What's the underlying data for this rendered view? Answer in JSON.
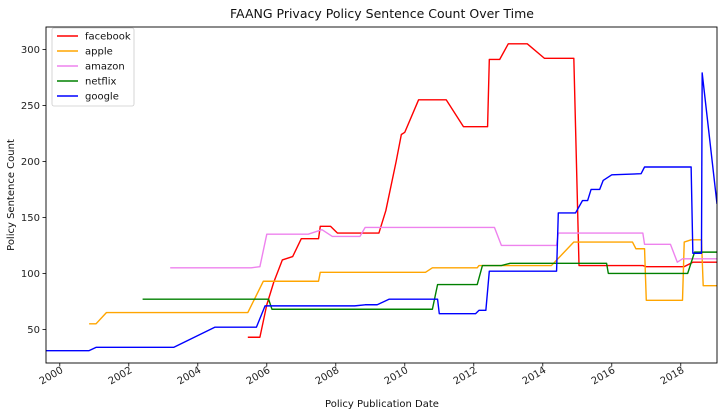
{
  "chart_data": {
    "type": "line",
    "title": "FAANG Privacy Policy Sentence Count Over Time",
    "xlabel": "Policy Publication Date",
    "ylabel": "Policy Sentence Count",
    "xlim": [
      1999.6,
      2019.05
    ],
    "ylim": [
      20,
      320
    ],
    "xticks": [
      {
        "value": 2000,
        "label": "2000"
      },
      {
        "value": 2002,
        "label": "2002"
      },
      {
        "value": 2004,
        "label": "2004"
      },
      {
        "value": 2006,
        "label": "2006"
      },
      {
        "value": 2008,
        "label": "2008"
      },
      {
        "value": 2010,
        "label": "2010"
      },
      {
        "value": 2012,
        "label": "2012"
      },
      {
        "value": 2014,
        "label": "2014"
      },
      {
        "value": 2016,
        "label": "2016"
      },
      {
        "value": 2018,
        "label": "2018"
      }
    ],
    "yticks": [
      {
        "value": 50,
        "label": "50"
      },
      {
        "value": 100,
        "label": "100"
      },
      {
        "value": 150,
        "label": "150"
      },
      {
        "value": 200,
        "label": "200"
      },
      {
        "value": 250,
        "label": "250"
      },
      {
        "value": 300,
        "label": "300"
      }
    ],
    "grid": false,
    "legend_position": "top-left",
    "series": [
      {
        "name": "facebook",
        "color": "#ff0000",
        "points": [
          [
            2005.45,
            43
          ],
          [
            2005.8,
            43
          ],
          [
            2006.0,
            72
          ],
          [
            2006.2,
            92
          ],
          [
            2006.45,
            112
          ],
          [
            2006.75,
            115
          ],
          [
            2007.0,
            131
          ],
          [
            2007.5,
            131
          ],
          [
            2007.55,
            142
          ],
          [
            2007.85,
            142
          ],
          [
            2008.05,
            136
          ],
          [
            2009.0,
            136
          ],
          [
            2009.25,
            136
          ],
          [
            2009.45,
            156
          ],
          [
            2009.75,
            200
          ],
          [
            2009.9,
            224
          ],
          [
            2010.0,
            226
          ],
          [
            2010.4,
            255
          ],
          [
            2011.2,
            255
          ],
          [
            2011.7,
            231
          ],
          [
            2012.4,
            231
          ],
          [
            2012.45,
            291
          ],
          [
            2012.75,
            291
          ],
          [
            2013.0,
            305
          ],
          [
            2013.55,
            305
          ],
          [
            2014.05,
            292
          ],
          [
            2014.9,
            292
          ],
          [
            2015.05,
            107
          ],
          [
            2015.2,
            107
          ],
          [
            2016.9,
            107
          ],
          [
            2017.0,
            106
          ],
          [
            2018.1,
            106
          ],
          [
            2018.35,
            110
          ],
          [
            2019.05,
            110
          ]
        ]
      },
      {
        "name": "apple",
        "color": "#ffa500",
        "points": [
          [
            2000.85,
            55
          ],
          [
            2001.05,
            55
          ],
          [
            2001.35,
            65
          ],
          [
            2005.45,
            65
          ],
          [
            2005.9,
            93
          ],
          [
            2007.5,
            93
          ],
          [
            2007.55,
            101
          ],
          [
            2010.6,
            101
          ],
          [
            2010.8,
            105
          ],
          [
            2012.1,
            105
          ],
          [
            2012.15,
            107
          ],
          [
            2014.25,
            107
          ],
          [
            2014.9,
            128
          ],
          [
            2016.6,
            128
          ],
          [
            2016.7,
            122
          ],
          [
            2016.95,
            122
          ],
          [
            2017.0,
            76
          ],
          [
            2018.05,
            76
          ],
          [
            2018.1,
            128
          ],
          [
            2018.3,
            130
          ],
          [
            2018.6,
            130
          ],
          [
            2018.65,
            89
          ],
          [
            2019.05,
            89
          ]
        ]
      },
      {
        "name": "amazon",
        "color": "#ee82ee",
        "points": [
          [
            2003.2,
            105
          ],
          [
            2005.55,
            105
          ],
          [
            2005.8,
            106
          ],
          [
            2006.0,
            135
          ],
          [
            2007.2,
            135
          ],
          [
            2007.6,
            139
          ],
          [
            2007.9,
            133
          ],
          [
            2008.7,
            133
          ],
          [
            2008.85,
            141
          ],
          [
            2012.6,
            141
          ],
          [
            2012.8,
            125
          ],
          [
            2014.4,
            125
          ],
          [
            2014.45,
            136
          ],
          [
            2016.9,
            136
          ],
          [
            2016.95,
            126
          ],
          [
            2017.7,
            126
          ],
          [
            2017.9,
            110
          ],
          [
            2018.05,
            113
          ],
          [
            2019.05,
            113
          ]
        ]
      },
      {
        "name": "netflix",
        "color": "#008000",
        "points": [
          [
            2002.4,
            77
          ],
          [
            2006.05,
            77
          ],
          [
            2006.15,
            68
          ],
          [
            2010.8,
            68
          ],
          [
            2010.95,
            90
          ],
          [
            2012.1,
            90
          ],
          [
            2012.25,
            107
          ],
          [
            2012.8,
            107
          ],
          [
            2013.05,
            109
          ],
          [
            2015.85,
            109
          ],
          [
            2015.9,
            100
          ],
          [
            2018.2,
            100
          ],
          [
            2018.4,
            119
          ],
          [
            2019.05,
            119
          ]
        ]
      },
      {
        "name": "google",
        "color": "#0000ff",
        "points": [
          [
            1999.6,
            31
          ],
          [
            2000.85,
            31
          ],
          [
            2001.05,
            34
          ],
          [
            2003.3,
            34
          ],
          [
            2004.5,
            52
          ],
          [
            2005.7,
            52
          ],
          [
            2005.95,
            71
          ],
          [
            2006.5,
            71
          ],
          [
            2008.55,
            71
          ],
          [
            2008.85,
            72
          ],
          [
            2009.2,
            72
          ],
          [
            2009.55,
            77
          ],
          [
            2010.95,
            77
          ],
          [
            2011.0,
            64
          ],
          [
            2012.05,
            64
          ],
          [
            2012.15,
            67
          ],
          [
            2012.35,
            67
          ],
          [
            2012.45,
            102
          ],
          [
            2014.4,
            102
          ],
          [
            2014.45,
            154
          ],
          [
            2014.95,
            154
          ],
          [
            2015.15,
            165
          ],
          [
            2015.3,
            165
          ],
          [
            2015.4,
            175
          ],
          [
            2015.65,
            175
          ],
          [
            2015.75,
            183
          ],
          [
            2016.0,
            188
          ],
          [
            2016.85,
            189
          ],
          [
            2016.95,
            195
          ],
          [
            2018.3,
            195
          ],
          [
            2018.35,
            118
          ],
          [
            2018.6,
            118
          ],
          [
            2018.62,
            279
          ],
          [
            2019.05,
            162
          ]
        ]
      }
    ]
  }
}
